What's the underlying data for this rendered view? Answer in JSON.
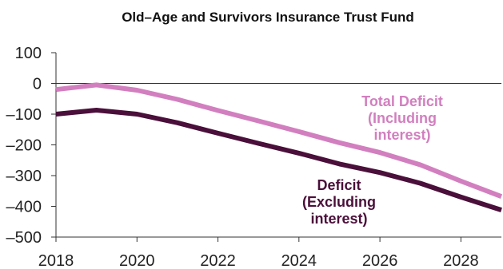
{
  "chart_data": {
    "type": "line",
    "title": "Old–Age and Survivors Insurance Trust Fund",
    "xlabel": "",
    "ylabel": "",
    "xlim": [
      2018,
      2029
    ],
    "ylim": [
      -500,
      100
    ],
    "x_ticks": [
      "2018",
      "2020",
      "2022",
      "2024",
      "2026",
      "2028"
    ],
    "y_ticks": [
      "100",
      "0",
      "–100",
      "–200",
      "–300",
      "–400",
      "–500"
    ],
    "grid": false,
    "legend": "inline labels at line ends",
    "series": [
      {
        "name": "Total Deficit (Including interest)",
        "label_lines": [
          "Total Deficit",
          "(Including",
          "interest)"
        ],
        "color": "#d27fbf",
        "x": [
          2018,
          2019,
          2020,
          2021,
          2022,
          2023,
          2024,
          2025,
          2026,
          2027,
          2028,
          2029
        ],
        "values": [
          -20,
          -5,
          -22,
          -52,
          -88,
          -122,
          -157,
          -193,
          -225,
          -265,
          -318,
          -368
        ]
      },
      {
        "name": "Deficit (Excluding interest)",
        "label_lines": [
          "Deficit",
          "(Excluding",
          "interest)"
        ],
        "color": "#4a0f3a",
        "x": [
          2018,
          2019,
          2020,
          2021,
          2022,
          2023,
          2024,
          2025,
          2026,
          2027,
          2028,
          2029
        ],
        "values": [
          -100,
          -87,
          -100,
          -128,
          -162,
          -195,
          -227,
          -262,
          -290,
          -325,
          -370,
          -412
        ]
      }
    ]
  }
}
